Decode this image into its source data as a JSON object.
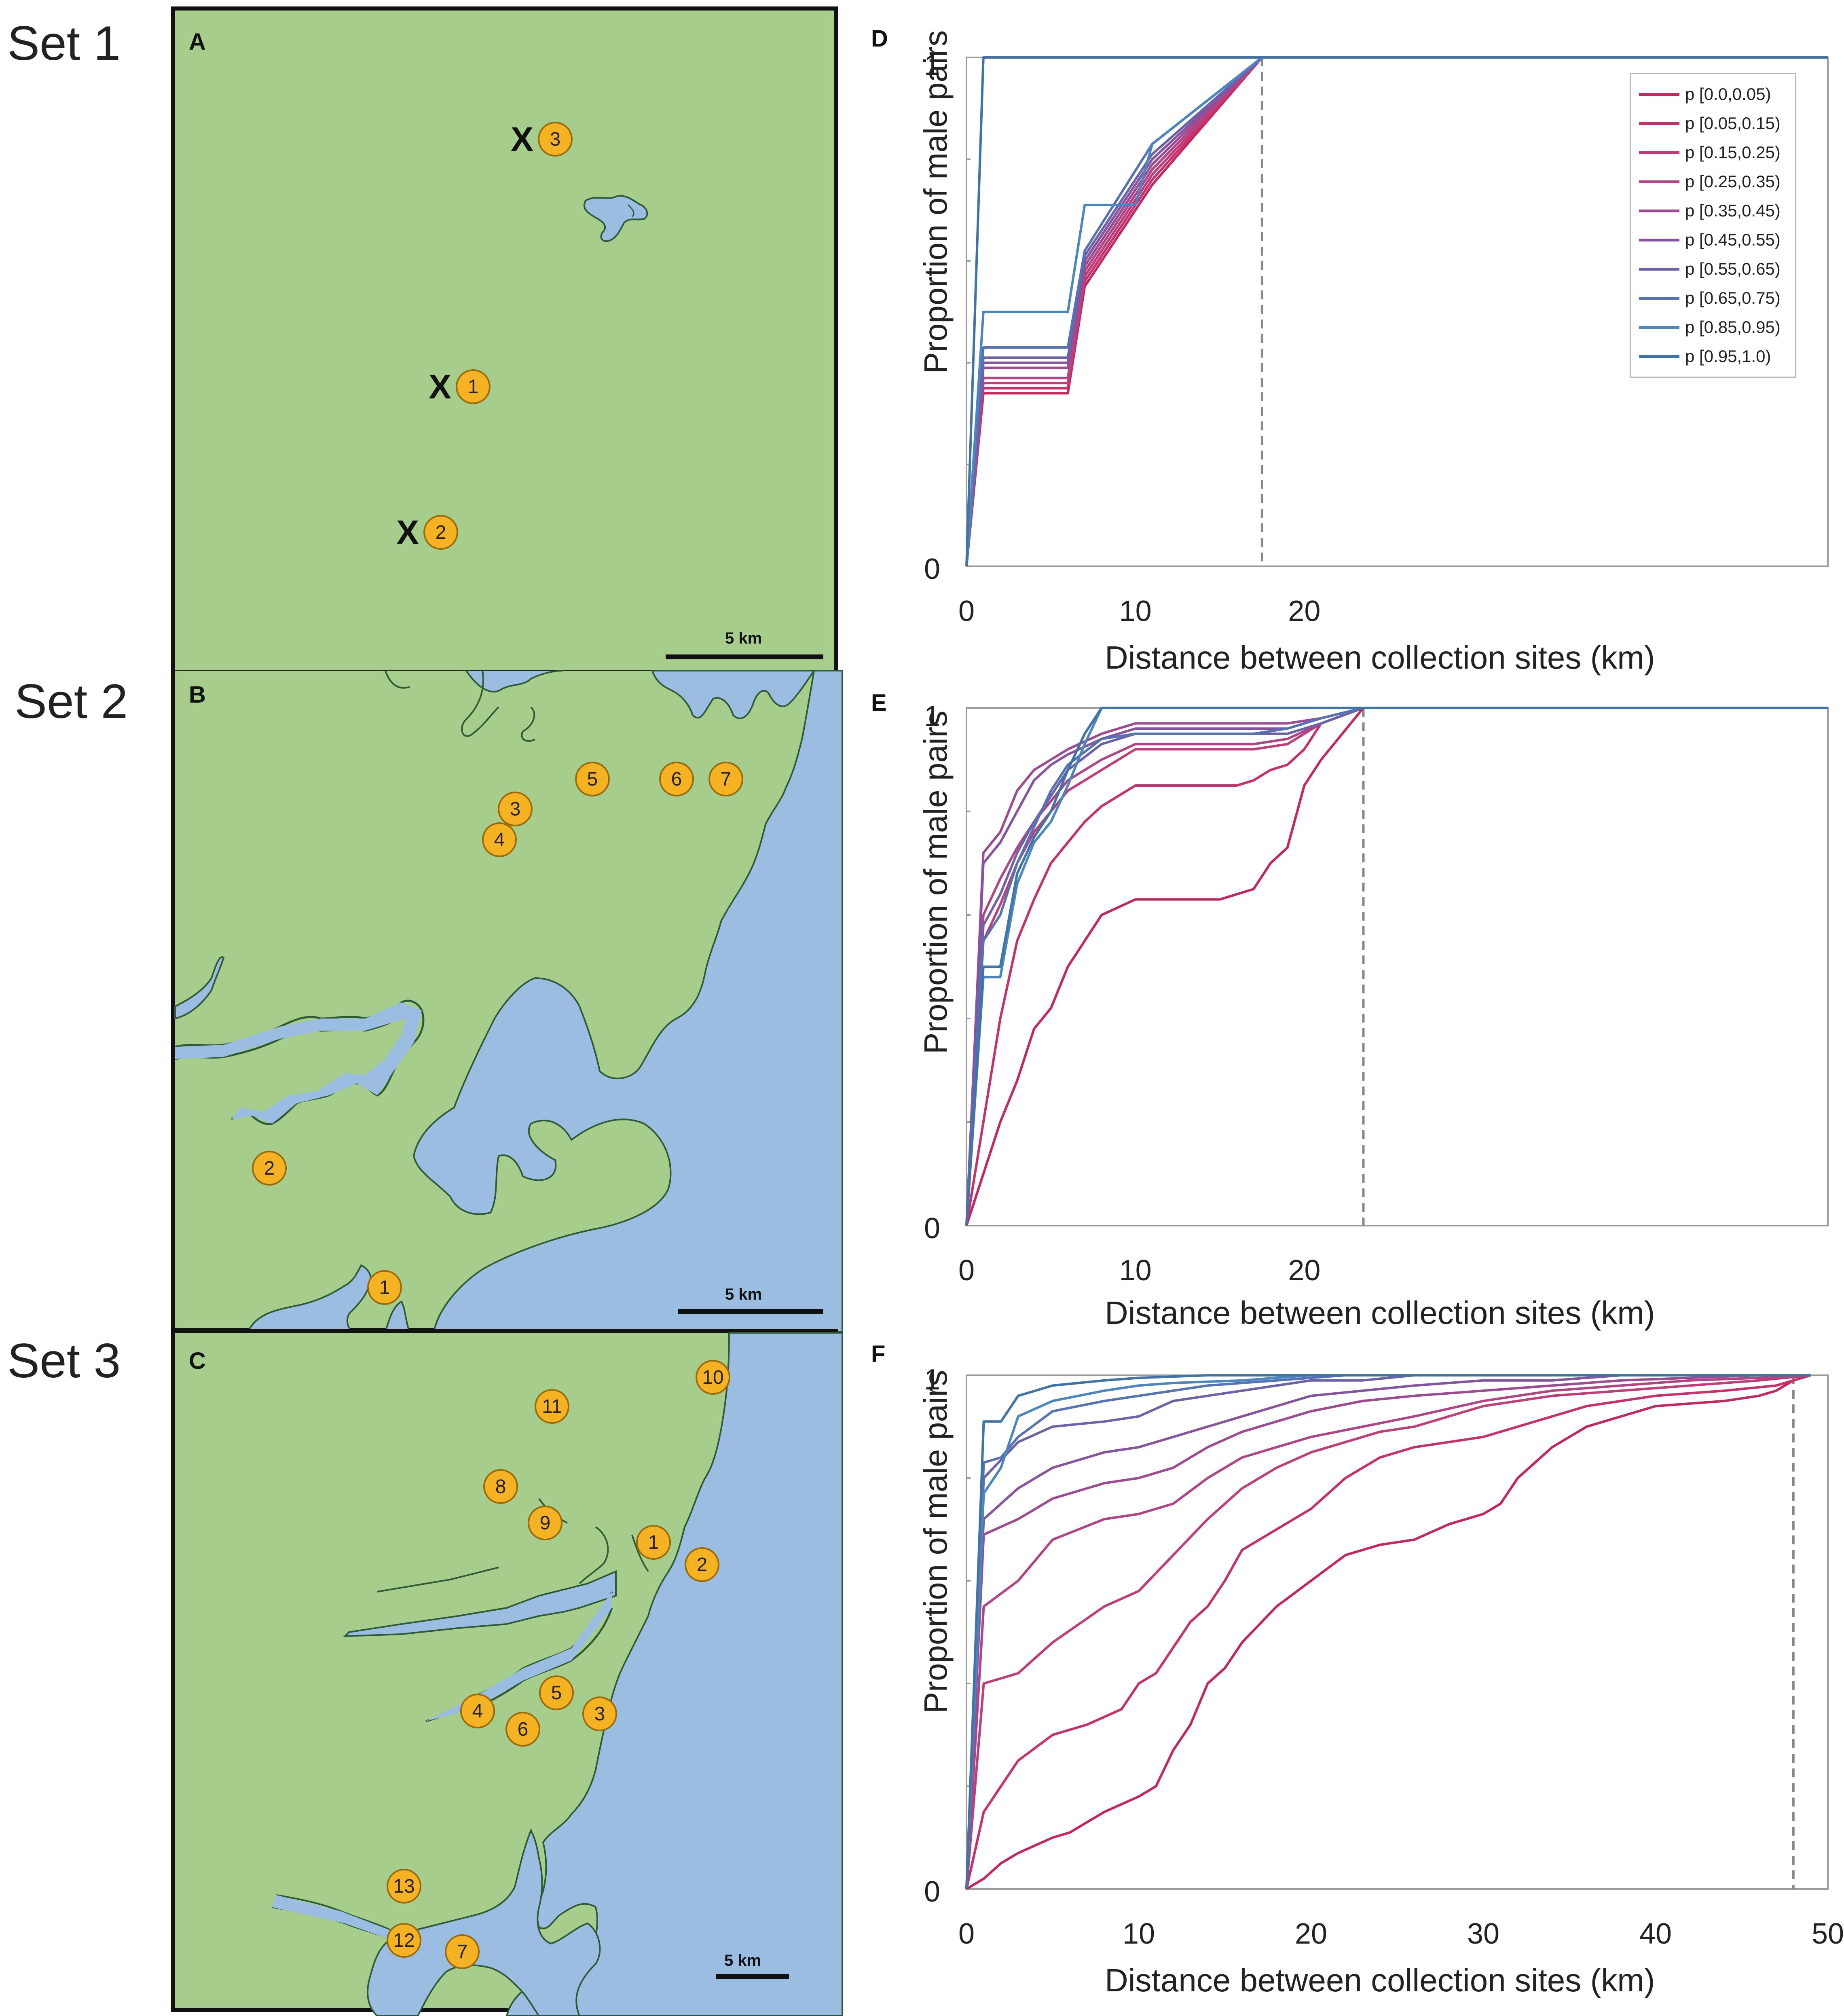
{
  "sets": [
    "Set 1",
    "Set 2",
    "Set 3"
  ],
  "panels": {
    "a": "A",
    "b": "B",
    "c": "C",
    "d": "D",
    "e": "E",
    "f": "F"
  },
  "colors": {
    "land": "#a6cd8c",
    "water": "#9cbde2",
    "site": "#f5b324",
    "ref_line": "#888888"
  },
  "maps": {
    "a": {
      "sites": [
        "3",
        "1",
        "2"
      ],
      "marker": "X",
      "scale": "5 km"
    },
    "b": {
      "sites": [
        "5",
        "6",
        "7",
        "3",
        "4",
        "2",
        "1"
      ],
      "scale": "5 km"
    },
    "c": {
      "sites": [
        "10",
        "11",
        "8",
        "9",
        "1",
        "2",
        "5",
        "4",
        "3",
        "6",
        "13",
        "12",
        "7"
      ],
      "scale": "5 km"
    }
  },
  "legend": [
    {
      "label": "p [0.0,0.05)",
      "color": "#c7255d"
    },
    {
      "label": "p [0.05,0.15)",
      "color": "#c92f6a"
    },
    {
      "label": "p [0.15,0.25)",
      "color": "#c13d78"
    },
    {
      "label": "p [0.25,0.35)",
      "color": "#b14584"
    },
    {
      "label": "p [0.35,0.45)",
      "color": "#9e4a92"
    },
    {
      "label": "p [0.45,0.55)",
      "color": "#86549e"
    },
    {
      "label": "p [0.55,0.65)",
      "color": "#6c62aa"
    },
    {
      "label": "p [0.65,0.75)",
      "color": "#5573b4"
    },
    {
      "label": "p [0.85,0.95)",
      "color": "#4b86c0"
    },
    {
      "label": "p [0.95,1.0)",
      "color": "#3f74a8"
    }
  ],
  "chart_data": [
    {
      "panel": "D",
      "type": "line",
      "xlabel": "Distance between collection sites (km)",
      "ylabel": "Proportion of male pairs",
      "xlim": [
        0,
        51
      ],
      "ylim": [
        0,
        1
      ],
      "xticks": [
        "0",
        "10",
        "20"
      ],
      "yticks": [
        "0",
        "1"
      ],
      "ref_x": 17.5,
      "series": [
        {
          "name": "p [0.0,0.05)",
          "x": [
            0,
            1,
            6,
            7,
            11,
            17.5,
            51
          ],
          "y": [
            0,
            0.34,
            0.34,
            0.55,
            0.75,
            1,
            1
          ]
        },
        {
          "name": "p [0.05,0.15)",
          "x": [
            0,
            1,
            6,
            7,
            11,
            17.5,
            51
          ],
          "y": [
            0,
            0.35,
            0.35,
            0.56,
            0.76,
            1,
            1
          ]
        },
        {
          "name": "p [0.15,0.25)",
          "x": [
            0,
            1,
            6,
            7,
            11,
            17.5,
            51
          ],
          "y": [
            0,
            0.36,
            0.36,
            0.57,
            0.77,
            1,
            1
          ]
        },
        {
          "name": "p [0.25,0.35)",
          "x": [
            0,
            1,
            6,
            7,
            11,
            17.5,
            51
          ],
          "y": [
            0,
            0.37,
            0.37,
            0.58,
            0.78,
            1,
            1
          ]
        },
        {
          "name": "p [0.35,0.45)",
          "x": [
            0,
            1,
            6,
            7,
            11,
            17.5,
            51
          ],
          "y": [
            0,
            0.39,
            0.39,
            0.59,
            0.79,
            1,
            1
          ]
        },
        {
          "name": "p [0.45,0.55)",
          "x": [
            0,
            1,
            6,
            7,
            11,
            17.5,
            51
          ],
          "y": [
            0,
            0.4,
            0.4,
            0.6,
            0.8,
            1,
            1
          ]
        },
        {
          "name": "p [0.55,0.65)",
          "x": [
            0,
            1,
            6,
            7,
            11,
            17.5,
            51
          ],
          "y": [
            0,
            0.41,
            0.41,
            0.61,
            0.81,
            1,
            1
          ]
        },
        {
          "name": "p [0.65,0.75)",
          "x": [
            0,
            1,
            6,
            7,
            11,
            17.5,
            51
          ],
          "y": [
            0,
            0.43,
            0.43,
            0.62,
            0.83,
            1,
            1
          ]
        },
        {
          "name": "p [0.85,0.95)",
          "x": [
            0,
            1,
            6,
            7,
            10,
            11,
            17.5,
            51
          ],
          "y": [
            0,
            0.5,
            0.5,
            0.71,
            0.71,
            0.83,
            1,
            1
          ]
        },
        {
          "name": "p [0.95,1.0)",
          "x": [
            0,
            1,
            51
          ],
          "y": [
            0,
            1,
            1
          ]
        }
      ]
    },
    {
      "panel": "E",
      "type": "line",
      "xlabel": "Distance between collection sites (km)",
      "ylabel": "Proportion of male pairs",
      "xlim": [
        0,
        51
      ],
      "ylim": [
        0,
        1
      ],
      "xticks": [
        "0",
        "10",
        "20"
      ],
      "yticks": [
        "0",
        "1"
      ],
      "ref_x": 23.5,
      "series": [
        {
          "name": "p [0.0,0.05)",
          "x": [
            0,
            1,
            2,
            3,
            4,
            5,
            6,
            7,
            8,
            10,
            13,
            15,
            16,
            17,
            18,
            19,
            20,
            21,
            23.5,
            51
          ],
          "y": [
            0,
            0.1,
            0.2,
            0.28,
            0.38,
            0.42,
            0.5,
            0.55,
            0.6,
            0.63,
            0.63,
            0.63,
            0.64,
            0.65,
            0.7,
            0.73,
            0.85,
            0.9,
            1,
            1
          ]
        },
        {
          "name": "p [0.05,0.15)",
          "x": [
            0,
            1,
            2,
            3,
            4,
            5,
            6,
            7,
            8,
            10,
            14,
            16,
            17,
            18,
            19,
            20,
            21,
            23.5,
            51
          ],
          "y": [
            0,
            0.2,
            0.4,
            0.55,
            0.63,
            0.7,
            0.74,
            0.78,
            0.81,
            0.85,
            0.85,
            0.85,
            0.86,
            0.88,
            0.89,
            0.92,
            0.97,
            1,
            1
          ]
        },
        {
          "name": "p [0.15,0.25)",
          "x": [
            0,
            1,
            2,
            3,
            4,
            5,
            6,
            8,
            10,
            17,
            19,
            21,
            23.5,
            51
          ],
          "y": [
            0,
            0.55,
            0.62,
            0.7,
            0.76,
            0.8,
            0.84,
            0.88,
            0.92,
            0.92,
            0.93,
            0.97,
            1,
            1
          ]
        },
        {
          "name": "p [0.25,0.35)",
          "x": [
            0,
            1,
            2,
            3,
            4,
            5,
            6,
            8,
            10,
            17,
            19,
            21,
            23.5,
            51
          ],
          "y": [
            0,
            0.6,
            0.67,
            0.73,
            0.78,
            0.82,
            0.86,
            0.9,
            0.93,
            0.93,
            0.94,
            0.97,
            1,
            1
          ]
        },
        {
          "name": "p [0.35,0.45)",
          "x": [
            0,
            1,
            2,
            3,
            4,
            5,
            6,
            8,
            10,
            17,
            19,
            21,
            23.5,
            51
          ],
          "y": [
            0,
            0.72,
            0.76,
            0.84,
            0.88,
            0.9,
            0.92,
            0.95,
            0.97,
            0.97,
            0.97,
            0.98,
            1,
            1
          ]
        },
        {
          "name": "p [0.45,0.55)",
          "x": [
            0,
            1,
            2,
            3,
            4,
            5,
            6,
            8,
            10,
            17,
            19,
            21,
            23.5,
            51
          ],
          "y": [
            0,
            0.7,
            0.74,
            0.8,
            0.86,
            0.89,
            0.91,
            0.94,
            0.96,
            0.96,
            0.96,
            0.98,
            1,
            1
          ]
        },
        {
          "name": "p [0.55,0.65)",
          "x": [
            0,
            1,
            2,
            3,
            4,
            5,
            6,
            8,
            10,
            17,
            19,
            21,
            23.5,
            51
          ],
          "y": [
            0,
            0.58,
            0.64,
            0.72,
            0.78,
            0.83,
            0.88,
            0.93,
            0.95,
            0.95,
            0.95,
            0.97,
            1,
            1
          ]
        },
        {
          "name": "p [0.65,0.75)",
          "x": [
            0,
            1,
            2,
            3,
            4,
            5,
            6,
            8,
            10,
            17,
            19,
            21,
            23.5,
            51
          ],
          "y": [
            0,
            0.55,
            0.6,
            0.7,
            0.77,
            0.84,
            0.89,
            0.94,
            0.95,
            0.95,
            0.96,
            0.98,
            1,
            1
          ]
        },
        {
          "name": "p [0.85,0.95)",
          "x": [
            0,
            1,
            2,
            3,
            4,
            5,
            6,
            7,
            8,
            51
          ],
          "y": [
            0,
            0.48,
            0.48,
            0.66,
            0.74,
            0.78,
            0.85,
            0.93,
            1,
            1
          ]
        },
        {
          "name": "p [0.95,1.0)",
          "x": [
            0,
            1,
            2,
            3,
            4,
            5,
            6,
            7,
            8,
            51
          ],
          "y": [
            0,
            0.5,
            0.5,
            0.68,
            0.75,
            0.8,
            0.88,
            0.95,
            1,
            1
          ]
        }
      ]
    },
    {
      "panel": "F",
      "type": "line",
      "xlabel": "Distance between collection sites (km)",
      "ylabel": "Proportion of male pairs",
      "xlim": [
        0,
        50
      ],
      "ylim": [
        0,
        1
      ],
      "xticks": [
        "0",
        "10",
        "20",
        "30",
        "40",
        "50"
      ],
      "yticks": [
        "0",
        "1"
      ],
      "ref_x": 48,
      "series": [
        {
          "name": "p [0.0,0.05)",
          "x": [
            0,
            1,
            2,
            3,
            5,
            6,
            8,
            10,
            11,
            12,
            13,
            14,
            15,
            16,
            18,
            20,
            22,
            24,
            26,
            28,
            30,
            31,
            32,
            34,
            36,
            38,
            40,
            44,
            46,
            47,
            48,
            49
          ],
          "y": [
            0,
            0.02,
            0.05,
            0.07,
            0.1,
            0.11,
            0.15,
            0.18,
            0.2,
            0.27,
            0.32,
            0.4,
            0.43,
            0.48,
            0.55,
            0.6,
            0.65,
            0.67,
            0.68,
            0.71,
            0.73,
            0.75,
            0.8,
            0.86,
            0.9,
            0.92,
            0.94,
            0.95,
            0.96,
            0.97,
            0.99,
            1
          ]
        },
        {
          "name": "p [0.05,0.15)",
          "x": [
            0,
            1,
            3,
            5,
            7,
            9,
            10,
            11,
            12,
            13,
            14,
            15,
            16,
            18,
            20,
            22,
            24,
            26,
            28,
            30,
            32,
            34,
            36,
            38,
            40,
            44,
            47,
            49
          ],
          "y": [
            0,
            0.15,
            0.25,
            0.3,
            0.32,
            0.35,
            0.4,
            0.42,
            0.47,
            0.52,
            0.55,
            0.6,
            0.66,
            0.7,
            0.74,
            0.8,
            0.84,
            0.86,
            0.87,
            0.88,
            0.9,
            0.92,
            0.94,
            0.95,
            0.96,
            0.97,
            0.98,
            1
          ]
        },
        {
          "name": "p [0.15,0.25)",
          "x": [
            0,
            1,
            3,
            5,
            8,
            10,
            12,
            14,
            16,
            18,
            20,
            22,
            24,
            26,
            28,
            30,
            34,
            38,
            42,
            46,
            49
          ],
          "y": [
            0,
            0.4,
            0.42,
            0.48,
            0.55,
            0.58,
            0.65,
            0.72,
            0.78,
            0.82,
            0.85,
            0.87,
            0.89,
            0.9,
            0.92,
            0.94,
            0.96,
            0.97,
            0.98,
            0.99,
            1
          ]
        },
        {
          "name": "p [0.25,0.35)",
          "x": [
            0,
            1,
            3,
            5,
            8,
            10,
            12,
            14,
            16,
            18,
            20,
            23,
            26,
            30,
            34,
            38,
            42,
            46,
            49
          ],
          "y": [
            0,
            0.55,
            0.6,
            0.68,
            0.72,
            0.73,
            0.75,
            0.8,
            0.84,
            0.86,
            0.88,
            0.9,
            0.92,
            0.95,
            0.97,
            0.98,
            0.99,
            0.995,
            1
          ]
        },
        {
          "name": "p [0.35,0.45)",
          "x": [
            0,
            1,
            3,
            5,
            8,
            10,
            12,
            14,
            16,
            18,
            20,
            23,
            26,
            30,
            34,
            38,
            42,
            46,
            49
          ],
          "y": [
            0,
            0.69,
            0.72,
            0.76,
            0.79,
            0.8,
            0.82,
            0.86,
            0.89,
            0.91,
            0.93,
            0.95,
            0.96,
            0.97,
            0.98,
            0.99,
            0.995,
            1,
            1
          ]
        },
        {
          "name": "p [0.45,0.55)",
          "x": [
            0,
            1,
            3,
            5,
            8,
            10,
            12,
            14,
            16,
            18,
            20,
            23,
            26,
            30,
            34,
            38,
            42,
            46,
            49
          ],
          "y": [
            0,
            0.72,
            0.78,
            0.82,
            0.85,
            0.86,
            0.88,
            0.9,
            0.92,
            0.94,
            0.96,
            0.97,
            0.98,
            0.99,
            0.99,
            1,
            1,
            1,
            1
          ]
        },
        {
          "name": "p [0.55,0.65)",
          "x": [
            0,
            1,
            3,
            5,
            8,
            10,
            12,
            14,
            16,
            18,
            20,
            23,
            26,
            30,
            34,
            40,
            49
          ],
          "y": [
            0,
            0.8,
            0.87,
            0.9,
            0.91,
            0.92,
            0.95,
            0.96,
            0.97,
            0.98,
            0.99,
            0.99,
            1,
            1,
            1,
            1,
            1
          ]
        },
        {
          "name": "p [0.65,0.75)",
          "x": [
            0,
            1,
            2,
            3,
            5,
            8,
            10,
            12,
            14,
            16,
            18,
            20,
            22,
            26,
            30,
            40,
            49
          ],
          "y": [
            0,
            0.83,
            0.84,
            0.88,
            0.93,
            0.95,
            0.96,
            0.97,
            0.98,
            0.985,
            0.99,
            0.995,
            1,
            1,
            1,
            1,
            1
          ]
        },
        {
          "name": "p [0.85,0.95)",
          "x": [
            0,
            1,
            2,
            3,
            5,
            8,
            10,
            12,
            16,
            20,
            26,
            30,
            40,
            49
          ],
          "y": [
            0,
            0.77,
            0.82,
            0.92,
            0.95,
            0.97,
            0.98,
            0.985,
            0.99,
            1,
            1,
            1,
            1,
            1
          ]
        },
        {
          "name": "p [0.95,1.0)",
          "x": [
            0,
            1,
            2,
            3,
            5,
            8,
            10,
            14,
            18,
            22,
            30,
            40,
            49
          ],
          "y": [
            0,
            0.91,
            0.91,
            0.96,
            0.98,
            0.99,
            0.995,
            1,
            1,
            1,
            1,
            1,
            1
          ]
        }
      ]
    }
  ]
}
